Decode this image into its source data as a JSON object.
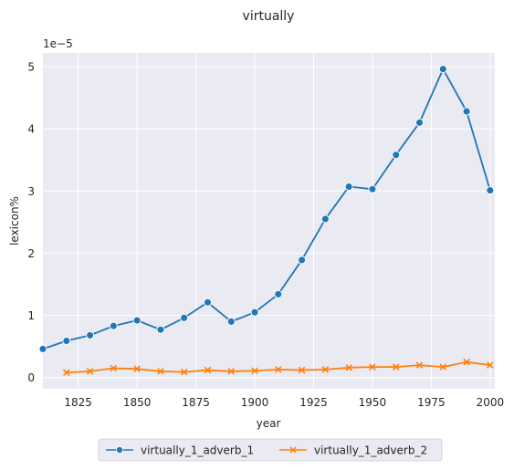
{
  "chart_data": {
    "type": "line",
    "title": "virtually",
    "xlabel": "year",
    "ylabel": "lexicon%",
    "y_scale_label": "1e−5",
    "xlim": [
      1810,
      2002
    ],
    "ylim": [
      -0.18,
      5.22
    ],
    "x_ticks": [
      1825,
      1850,
      1875,
      1900,
      1925,
      1950,
      1975,
      2000
    ],
    "y_ticks": [
      0,
      1,
      2,
      3,
      4,
      5
    ],
    "grid": true,
    "legend_position": "bottom-center",
    "series": [
      {
        "name": "virtually_1_adverb_1",
        "color": "#1f77b4",
        "marker": "circle",
        "x": [
          1810,
          1820,
          1830,
          1840,
          1850,
          1860,
          1870,
          1880,
          1890,
          1900,
          1910,
          1920,
          1930,
          1940,
          1950,
          1960,
          1970,
          1980,
          1990,
          2000
        ],
        "y": [
          0.46,
          0.59,
          0.68,
          0.83,
          0.92,
          0.77,
          0.96,
          1.21,
          0.9,
          1.05,
          1.34,
          1.89,
          2.55,
          3.07,
          3.03,
          3.58,
          4.1,
          4.96,
          4.28,
          3.01
        ]
      },
      {
        "name": "virtually_1_adverb_2",
        "color": "#ff7f0e",
        "marker": "x",
        "x": [
          1820,
          1830,
          1840,
          1850,
          1860,
          1870,
          1880,
          1890,
          1900,
          1910,
          1920,
          1930,
          1940,
          1950,
          1960,
          1970,
          1980,
          1990,
          2000
        ],
        "y": [
          0.08,
          0.1,
          0.15,
          0.14,
          0.1,
          0.09,
          0.12,
          0.1,
          0.11,
          0.13,
          0.12,
          0.13,
          0.16,
          0.17,
          0.17,
          0.2,
          0.17,
          0.25,
          0.2
        ]
      }
    ]
  }
}
